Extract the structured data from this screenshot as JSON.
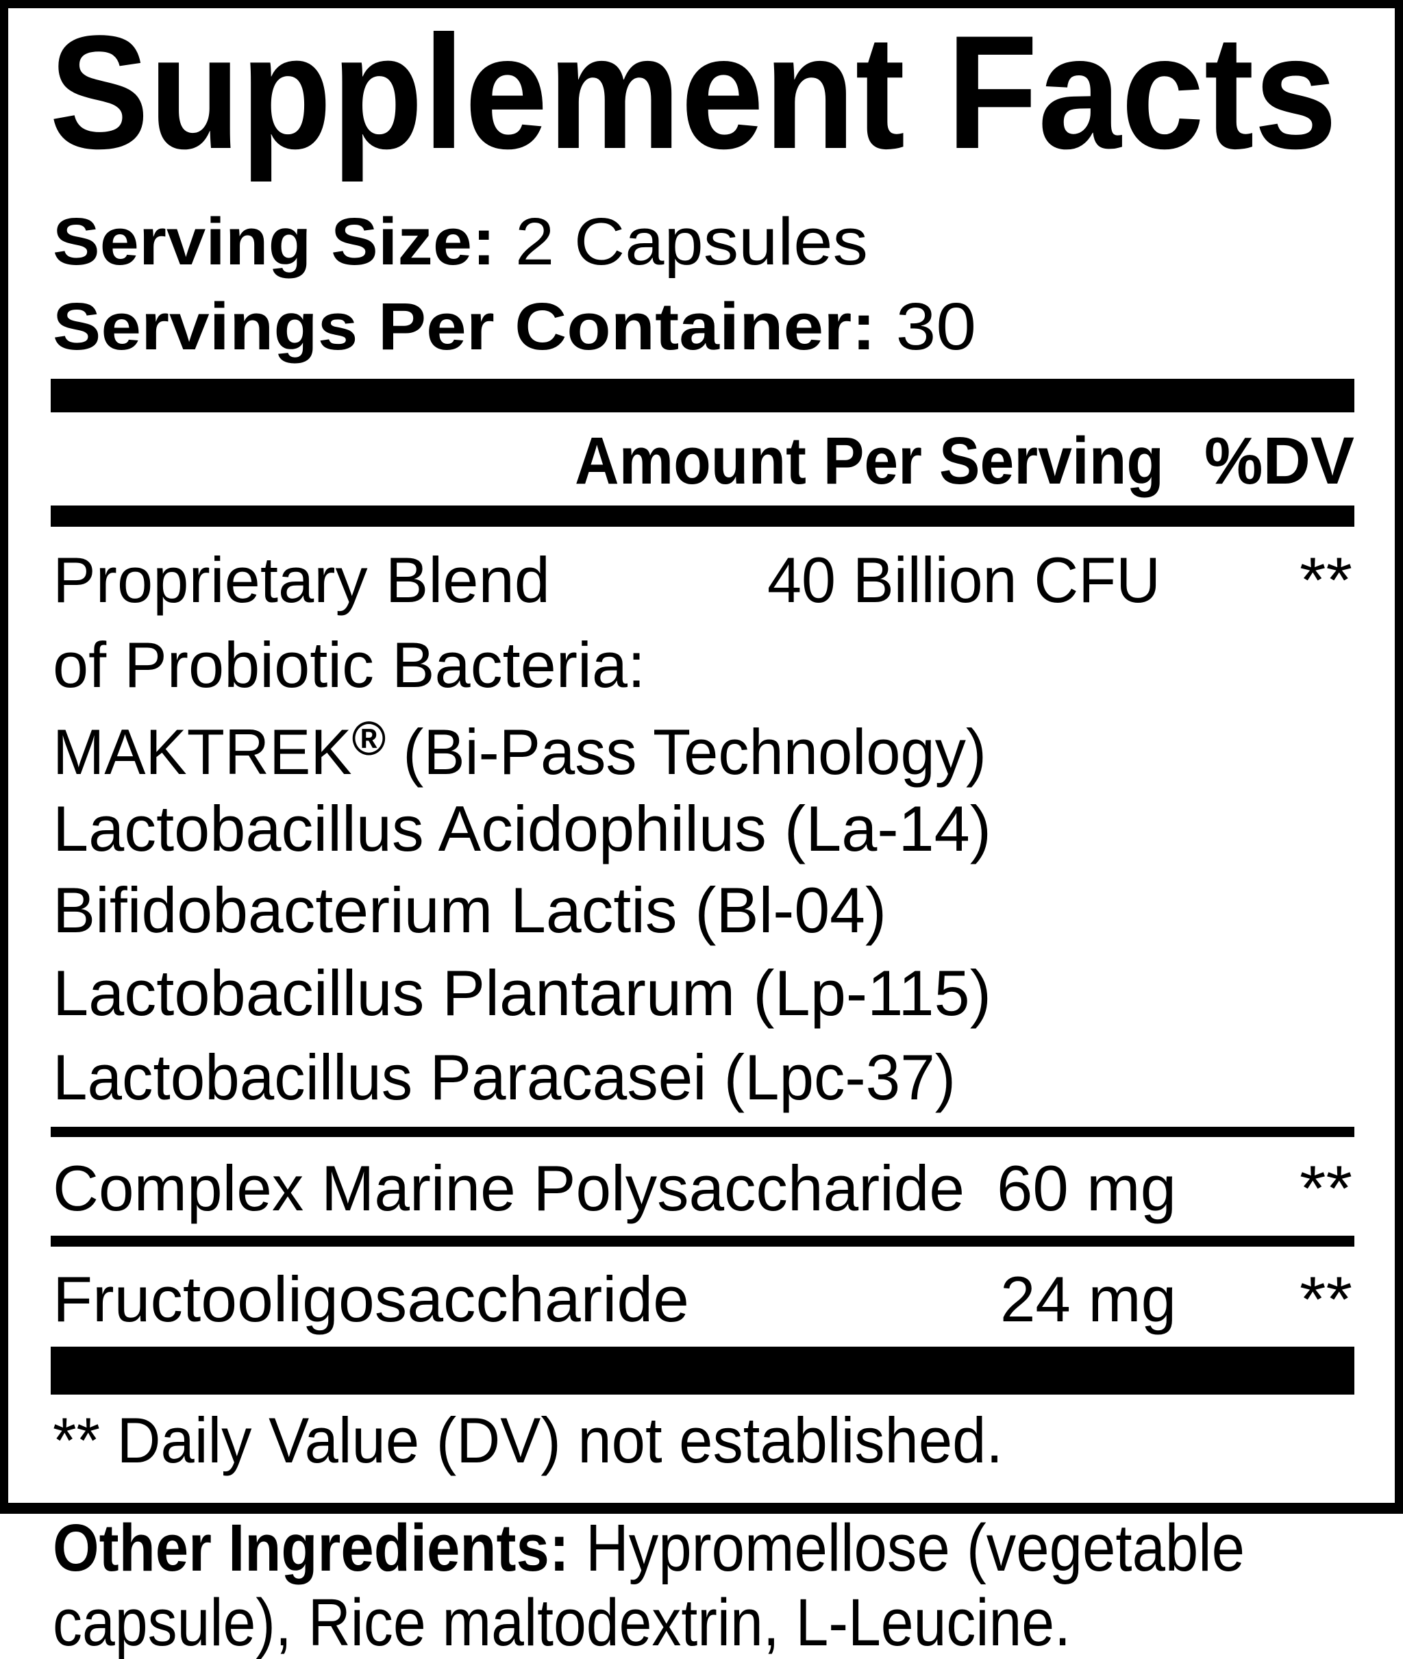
{
  "title": "Supplement Facts",
  "serving": {
    "size_label": "Serving Size:",
    "size_value": "2 Capsules",
    "per_container_label": "Servings Per Container:",
    "per_container_value": "30"
  },
  "columns": {
    "amount": "Amount Per Serving",
    "dv": "%DV"
  },
  "blend": {
    "name_line1": "Proprietary Blend",
    "name_line2": "of Probiotic Bacteria:",
    "amount": "40 Billion CFU",
    "dv": "**",
    "brand": "MAKTREK",
    "brand_mark": "®",
    "brand_note": "(Bi-Pass Technology)",
    "strains": [
      "Lactobacillus Acidophilus (La-14)",
      "Bifidobacterium Lactis (Bl-04)",
      "Lactobacillus Plantarum (Lp-115)",
      "Lactobacillus Paracasei (Lpc-37)"
    ]
  },
  "ingredients": [
    {
      "name": "Complex Marine Polysaccharide",
      "amount": "60 mg",
      "dv": "**"
    },
    {
      "name": "Fructooligosaccharide",
      "amount": "24 mg",
      "dv": "**"
    }
  ],
  "footnote": "** Daily Value (DV) not established.",
  "other_ingredients": {
    "label": "Other Ingredients:",
    "line1": "Hypromellose (vegetable",
    "line2": "capsule), Rice maltodextrin, L-Leucine."
  }
}
